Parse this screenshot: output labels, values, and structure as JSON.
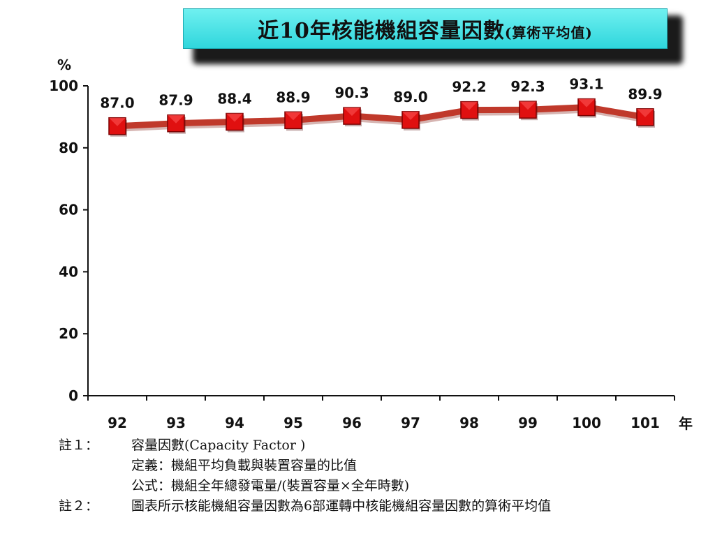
{
  "title": {
    "main": "近10年核能機組容量因數",
    "sub": "(算術平均值)"
  },
  "chart_data": {
    "type": "line",
    "categories": [
      "92",
      "93",
      "94",
      "95",
      "96",
      "97",
      "98",
      "99",
      "100",
      "101"
    ],
    "series": [
      {
        "values": [
          87.0,
          87.9,
          88.4,
          88.9,
          90.3,
          89.0,
          92.2,
          92.3,
          93.1,
          89.9
        ]
      }
    ],
    "value_labels": [
      "87.0",
      "87.9",
      "88.4",
      "88.9",
      "90.3",
      "89.0",
      "92.2",
      "92.3",
      "93.1",
      "89.9"
    ],
    "yticks": [
      "0",
      "20",
      "40",
      "60",
      "80",
      "100"
    ],
    "ylim": [
      0,
      100
    ],
    "ylabel": "%",
    "xlabel": "年",
    "grid": false,
    "colors": {
      "line": "#c0392b",
      "marker": "#e01010",
      "axis": "#111111"
    }
  },
  "notes": {
    "note1_key": "註１：",
    "note1_line1": "容量因數(Capacity Factor )",
    "note1_line2": "定義：機組平均負載與裝置容量的比值",
    "note1_line3": "公式：機組全年總發電量/(裝置容量×全年時數)",
    "note2_key": "註２：",
    "note2_line1": "圖表所示核能機組容量因數為6部運轉中核能機組容量因數的算術平均值"
  }
}
